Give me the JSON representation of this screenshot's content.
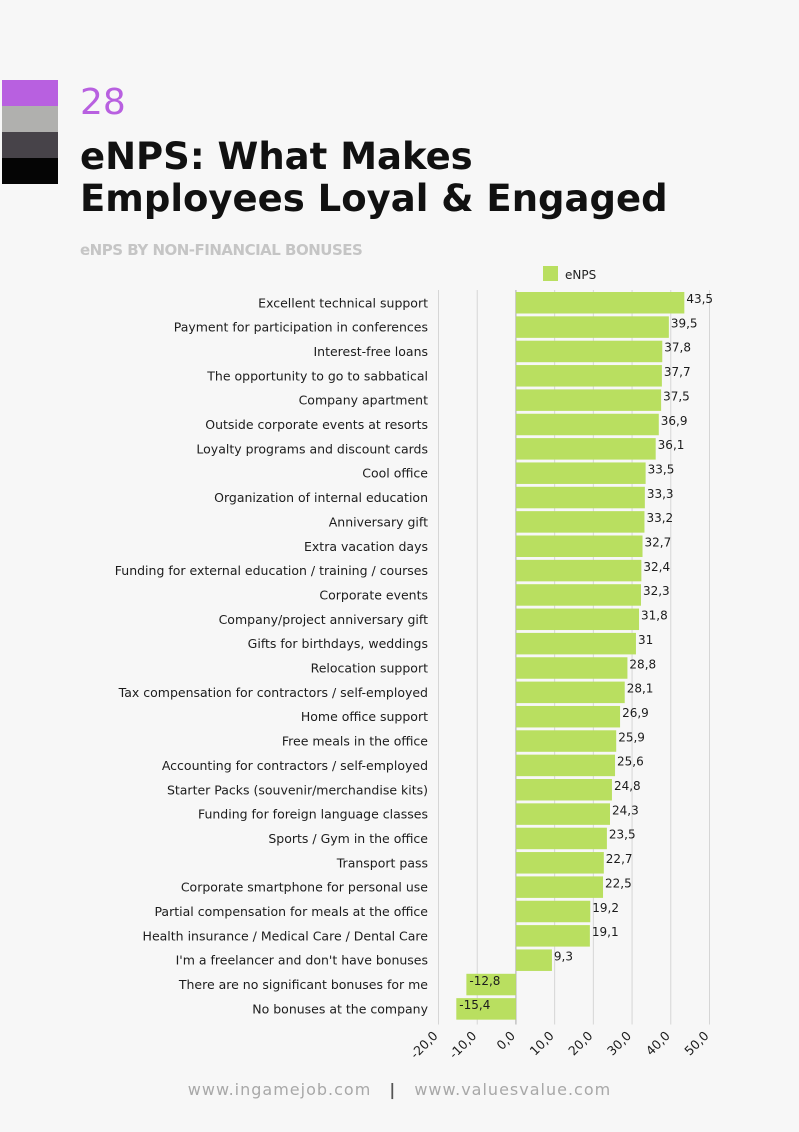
{
  "page": {
    "number": "28",
    "title_line1": "eNPS: What Makes",
    "title_line2": "Employees Loyal & Engaged",
    "subtitle": "eNPS BY NON-FINANCIAL BONUSES",
    "swatch_colors": [
      "#b860e0",
      "#b0b0ae",
      "#474349",
      "#050505"
    ],
    "footer_left": "www.ingamejob.com",
    "footer_separator": "|",
    "footer_right": "www.valuesvalue.com"
  },
  "chart_data": {
    "type": "bar",
    "orientation": "horizontal",
    "title": "eNPS BY NON-FINANCIAL BONUSES",
    "legend_position": "top",
    "grid": true,
    "bar_color": "#b9df60",
    "xlim": [
      -20,
      50
    ],
    "xticks": [
      "-20,0",
      "-10,0",
      "0,0",
      "10,0",
      "20,0",
      "30,0",
      "40,0",
      "50,0"
    ],
    "series": [
      {
        "name": "eNPS",
        "categories": [
          "Excellent technical support",
          "Payment for participation in conferences",
          "Interest-free loans",
          "The opportunity to go to sabbatical",
          "Company apartment",
          "Outside corporate events at resorts",
          "Loyalty programs and discount cards",
          "Cool office",
          "Organization of internal education",
          "Anniversary gift",
          "Extra vacation days",
          "Funding for external education / training / courses",
          "Corporate events",
          "Company/project anniversary gift",
          "Gifts for birthdays, weddings",
          "Relocation support",
          "Tax compensation for contractors / self-employed",
          "Home office support",
          "Free meals in the office",
          "Accounting for contractors / self-employed",
          "Starter Packs (souvenir/merchandise kits)",
          "Funding for foreign language classes",
          "Sports / Gym in the office",
          "Transport pass",
          "Corporate smartphone for personal use",
          "Partial compensation for meals at the office",
          "Health insurance / Medical Care / Dental Care",
          "I'm a freelancer and don't have bonuses",
          "There are no significant bonuses for me",
          "No bonuses at the company"
        ],
        "values": [
          43.5,
          39.5,
          37.8,
          37.7,
          37.5,
          36.9,
          36.1,
          33.5,
          33.3,
          33.2,
          32.7,
          32.4,
          32.3,
          31.8,
          31,
          28.8,
          28.1,
          26.9,
          25.9,
          25.6,
          24.8,
          24.3,
          23.5,
          22.7,
          22.5,
          19.2,
          19.1,
          9.3,
          -12.8,
          -15.4
        ],
        "labels": [
          "43,5",
          "39,5",
          "37,8",
          "37,7",
          "37,5",
          "36,9",
          "36,1",
          "33,5",
          "33,3",
          "33,2",
          "32,7",
          "32,4",
          "32,3",
          "31,8",
          "31",
          "28,8",
          "28,1",
          "26,9",
          "25,9",
          "25,6",
          "24,8",
          "24,3",
          "23,5",
          "22,7",
          "22,5",
          "19,2",
          "19,1",
          "9,3",
          "-12,8",
          "-15,4"
        ]
      }
    ]
  }
}
